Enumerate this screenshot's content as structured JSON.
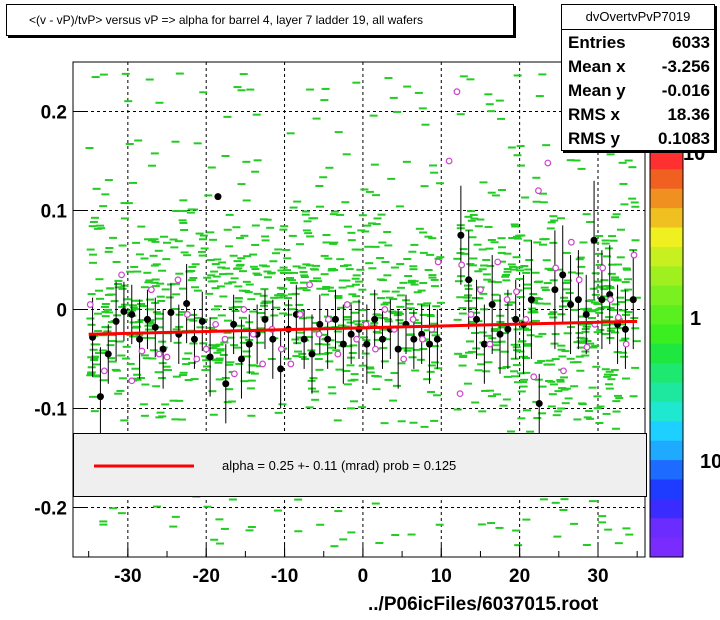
{
  "title": "<(v - vP)/tvP> versus   vP => alpha for barrel 4, layer 7 ladder 19, all wafers",
  "stats": {
    "name": "dvOvertvPvP7019",
    "rows": [
      {
        "label": "Entries",
        "value": "6033"
      },
      {
        "label": "Mean x",
        "value": "-3.256"
      },
      {
        "label": "Mean y",
        "value": "-0.016"
      },
      {
        "label": "RMS x",
        "value": "18.36"
      },
      {
        "label": "RMS y",
        "value": "0.1083"
      }
    ]
  },
  "fit_legend": "alpha =    0.25 +-  0.11 (mrad) prob = 0.125",
  "footer": "../P06icFiles/6037015.root",
  "colors": {
    "scatter": "#22cc22",
    "profile_black": "#000000",
    "profile_open": "#cc44cc",
    "fit": "#ff0000",
    "grid": "#000000"
  },
  "palette": {
    "labels": [
      "10",
      "1",
      "10"
    ],
    "colors": [
      "#7a2cff",
      "#6a2cff",
      "#3a2cff",
      "#1e3cff",
      "#1e6cff",
      "#1eaaff",
      "#1ed0ff",
      "#1ee8d0",
      "#1ee8a0",
      "#1ee870",
      "#1ee840",
      "#3aee20",
      "#5af020",
      "#7af020",
      "#a0f020",
      "#c8f020",
      "#f0f020",
      "#f0c020",
      "#f09020",
      "#f06020",
      "#ff3030"
    ]
  },
  "chart_data": {
    "type": "scatter",
    "title": "<(v - vP)/tvP> versus   vP => alpha for barrel 4, layer 7 ladder 19, all wafers",
    "xlabel": "",
    "ylabel": "",
    "xlim": [
      -37,
      36
    ],
    "ylim": [
      -0.25,
      0.25
    ],
    "x_ticks": [
      "-30",
      "-20",
      "-10",
      "0",
      "10",
      "20",
      "30"
    ],
    "y_ticks": [
      "0.2",
      "0.1",
      "0",
      "-0.1",
      "-0.2"
    ],
    "grid": true,
    "fit_line": {
      "x": [
        -35,
        35
      ],
      "y": [
        -0.025,
        -0.012
      ]
    },
    "profile_black": [
      {
        "x": -34.5,
        "y": -0.028,
        "e": 0.04
      },
      {
        "x": -33.5,
        "y": -0.088,
        "e": 0.05
      },
      {
        "x": -32.5,
        "y": -0.045,
        "e": 0.03
      },
      {
        "x": -31.5,
        "y": -0.012,
        "e": 0.04
      },
      {
        "x": -30.5,
        "y": -0.002,
        "e": 0.03
      },
      {
        "x": -29.5,
        "y": -0.005,
        "e": 0.03
      },
      {
        "x": -28.5,
        "y": -0.03,
        "e": 0.04
      },
      {
        "x": -27.5,
        "y": -0.01,
        "e": 0.03
      },
      {
        "x": -26.5,
        "y": -0.018,
        "e": 0.03
      },
      {
        "x": -25.5,
        "y": -0.04,
        "e": 0.04
      },
      {
        "x": -24.5,
        "y": -0.003,
        "e": 0.03
      },
      {
        "x": -23.5,
        "y": -0.025,
        "e": 0.03
      },
      {
        "x": -22.5,
        "y": 0.006,
        "e": 0.04
      },
      {
        "x": -21.5,
        "y": -0.03,
        "e": 0.03
      },
      {
        "x": -20.5,
        "y": -0.012,
        "e": 0.03
      },
      {
        "x": -19.5,
        "y": -0.048,
        "e": 0.04
      },
      {
        "x": -18.5,
        "y": 0.114,
        "e": 0.0
      },
      {
        "x": -17.5,
        "y": -0.075,
        "e": 0.04
      },
      {
        "x": -16.5,
        "y": -0.015,
        "e": 0.03
      },
      {
        "x": -15.5,
        "y": -0.05,
        "e": 0.04
      },
      {
        "x": -14.5,
        "y": -0.035,
        "e": 0.03
      },
      {
        "x": -13.5,
        "y": -0.025,
        "e": 0.03
      },
      {
        "x": -12.5,
        "y": -0.01,
        "e": 0.03
      },
      {
        "x": -11.5,
        "y": -0.03,
        "e": 0.04
      },
      {
        "x": -10.5,
        "y": -0.06,
        "e": 0.04
      },
      {
        "x": -9.5,
        "y": -0.02,
        "e": 0.03
      },
      {
        "x": -8.5,
        "y": -0.005,
        "e": 0.03
      },
      {
        "x": -7.5,
        "y": -0.03,
        "e": 0.03
      },
      {
        "x": -6.5,
        "y": -0.045,
        "e": 0.04
      },
      {
        "x": -5.5,
        "y": -0.015,
        "e": 0.03
      },
      {
        "x": -4.5,
        "y": -0.03,
        "e": 0.03
      },
      {
        "x": -3.5,
        "y": -0.01,
        "e": 0.03
      },
      {
        "x": -2.5,
        "y": -0.035,
        "e": 0.04
      },
      {
        "x": -1.5,
        "y": -0.025,
        "e": 0.03
      },
      {
        "x": -0.5,
        "y": -0.02,
        "e": 0.03
      },
      {
        "x": 0.5,
        "y": -0.035,
        "e": 0.04
      },
      {
        "x": 1.5,
        "y": -0.01,
        "e": 0.03
      },
      {
        "x": 2.5,
        "y": -0.03,
        "e": 0.03
      },
      {
        "x": 3.5,
        "y": -0.02,
        "e": 0.03
      },
      {
        "x": 4.5,
        "y": -0.04,
        "e": 0.04
      },
      {
        "x": 5.5,
        "y": -0.015,
        "e": 0.03
      },
      {
        "x": 6.5,
        "y": -0.03,
        "e": 0.03
      },
      {
        "x": 7.5,
        "y": -0.025,
        "e": 0.03
      },
      {
        "x": 8.5,
        "y": -0.035,
        "e": 0.04
      },
      {
        "x": 9.5,
        "y": -0.03,
        "e": 0.03
      },
      {
        "x": 12.5,
        "y": 0.075,
        "e": 0.05
      },
      {
        "x": 13.5,
        "y": 0.03,
        "e": 0.05
      },
      {
        "x": 14.5,
        "y": -0.01,
        "e": 0.04
      },
      {
        "x": 15.5,
        "y": -0.035,
        "e": 0.04
      },
      {
        "x": 16.5,
        "y": 0.005,
        "e": 0.05
      },
      {
        "x": 17.5,
        "y": -0.025,
        "e": 0.04
      },
      {
        "x": 18.5,
        "y": -0.02,
        "e": 0.04
      },
      {
        "x": 19.5,
        "y": -0.01,
        "e": 0.04
      },
      {
        "x": 20.5,
        "y": -0.015,
        "e": 0.05
      },
      {
        "x": 21.5,
        "y": 0.01,
        "e": 0.06
      },
      {
        "x": 22.5,
        "y": -0.095,
        "e": 0.03
      },
      {
        "x": 24.5,
        "y": 0.02,
        "e": 0.06
      },
      {
        "x": 25.5,
        "y": 0.035,
        "e": 0.05
      },
      {
        "x": 26.5,
        "y": 0.005,
        "e": 0.05
      },
      {
        "x": 27.5,
        "y": 0.01,
        "e": 0.05
      },
      {
        "x": 28.5,
        "y": -0.005,
        "e": 0.04
      },
      {
        "x": 29.5,
        "y": 0.07,
        "e": 0.06
      },
      {
        "x": 30.5,
        "y": 0.01,
        "e": 0.05
      },
      {
        "x": 31.5,
        "y": 0.015,
        "e": 0.05
      },
      {
        "x": 32.5,
        "y": -0.015,
        "e": 0.04
      },
      {
        "x": 33.5,
        "y": -0.02,
        "e": 0.04
      },
      {
        "x": 34.5,
        "y": 0.01,
        "e": 0.05
      }
    ],
    "profile_open": [
      {
        "x": -34.8,
        "y": 0.005
      },
      {
        "x": -33.0,
        "y": -0.062
      },
      {
        "x": -30.8,
        "y": 0.035
      },
      {
        "x": -29.5,
        "y": -0.072
      },
      {
        "x": -28.2,
        "y": -0.042
      },
      {
        "x": -27.0,
        "y": 0.02
      },
      {
        "x": -26.0,
        "y": -0.045
      },
      {
        "x": -25.0,
        "y": -0.048
      },
      {
        "x": -23.6,
        "y": 0.03
      },
      {
        "x": -22.4,
        "y": -0.005
      },
      {
        "x": -21.2,
        "y": -0.05
      },
      {
        "x": -20.0,
        "y": -0.04
      },
      {
        "x": -18.8,
        "y": -0.015
      },
      {
        "x": -17.6,
        "y": -0.03
      },
      {
        "x": -16.4,
        "y": -0.065
      },
      {
        "x": -15.2,
        "y": 0.0
      },
      {
        "x": -14.0,
        "y": -0.025
      },
      {
        "x": -12.8,
        "y": -0.055
      },
      {
        "x": -11.6,
        "y": -0.02
      },
      {
        "x": -10.4,
        "y": -0.04
      },
      {
        "x": -9.2,
        "y": -0.055
      },
      {
        "x": -8.0,
        "y": -0.005
      },
      {
        "x": -6.8,
        "y": 0.025
      },
      {
        "x": -5.6,
        "y": -0.025
      },
      {
        "x": -4.4,
        "y": -0.01
      },
      {
        "x": -3.2,
        "y": -0.045
      },
      {
        "x": -2.0,
        "y": 0.005
      },
      {
        "x": -0.8,
        "y": -0.03
      },
      {
        "x": 0.4,
        "y": -0.015
      },
      {
        "x": 1.6,
        "y": -0.04
      },
      {
        "x": 2.8,
        "y": 0.0
      },
      {
        "x": 4.0,
        "y": -0.02
      },
      {
        "x": 5.2,
        "y": -0.05
      },
      {
        "x": 6.4,
        "y": -0.01
      },
      {
        "x": 7.6,
        "y": -0.03
      },
      {
        "x": 8.8,
        "y": -0.02
      },
      {
        "x": 9.6,
        "y": 0.048
      },
      {
        "x": 11.0,
        "y": 0.15
      },
      {
        "x": 12.0,
        "y": 0.22
      },
      {
        "x": 12.6,
        "y": 0.045
      },
      {
        "x": 12.4,
        "y": -0.085
      },
      {
        "x": 13.8,
        "y": -0.005
      },
      {
        "x": 15.0,
        "y": 0.02
      },
      {
        "x": 16.2,
        "y": -0.035
      },
      {
        "x": 17.2,
        "y": 0.048
      },
      {
        "x": 18.4,
        "y": 0.01
      },
      {
        "x": 19.6,
        "y": 0.018
      },
      {
        "x": 20.8,
        "y": -0.01
      },
      {
        "x": 21.8,
        "y": -0.068
      },
      {
        "x": 22.4,
        "y": 0.12
      },
      {
        "x": 23.6,
        "y": 0.148
      },
      {
        "x": 24.6,
        "y": 0.042
      },
      {
        "x": 25.6,
        "y": -0.062
      },
      {
        "x": 26.6,
        "y": 0.068
      },
      {
        "x": 27.6,
        "y": 0.03
      },
      {
        "x": 28.6,
        "y": -0.038
      },
      {
        "x": 29.6,
        "y": -0.015
      },
      {
        "x": 30.6,
        "y": 0.042
      },
      {
        "x": 31.6,
        "y": 0.01
      },
      {
        "x": 32.6,
        "y": -0.008
      },
      {
        "x": 33.6,
        "y": -0.035
      },
      {
        "x": 34.6,
        "y": 0.055
      }
    ]
  }
}
